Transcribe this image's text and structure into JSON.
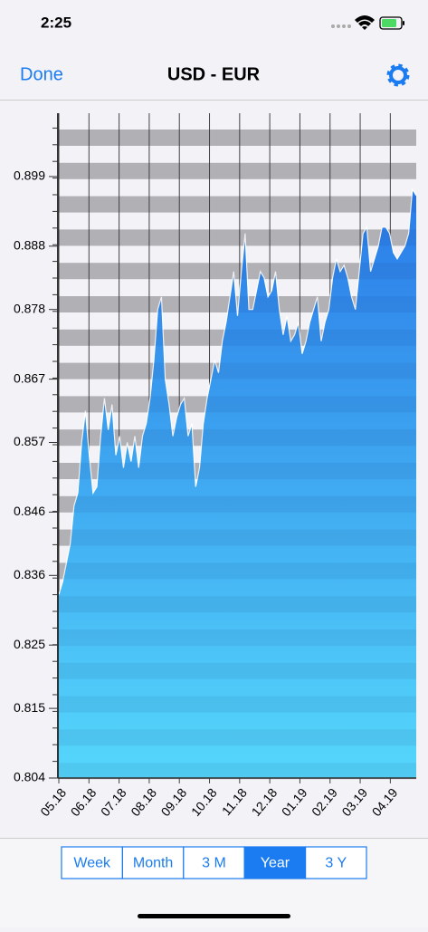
{
  "status_bar": {
    "time": "2:25"
  },
  "nav": {
    "back": "Done",
    "title": "USD - EUR"
  },
  "chart_data": {
    "type": "area",
    "color": "#2a7be8",
    "color_bottom": "#55d7fb",
    "values": [
      0.833,
      0.835,
      0.838,
      0.841,
      0.847,
      0.849,
      0.857,
      0.862,
      0.855,
      0.849,
      0.85,
      0.858,
      0.864,
      0.859,
      0.863,
      0.855,
      0.858,
      0.853,
      0.857,
      0.854,
      0.858,
      0.853,
      0.858,
      0.86,
      0.864,
      0.87,
      0.878,
      0.88,
      0.867,
      0.863,
      0.858,
      0.861,
      0.863,
      0.864,
      0.858,
      0.86,
      0.85,
      0.853,
      0.86,
      0.864,
      0.867,
      0.87,
      0.868,
      0.873,
      0.876,
      0.88,
      0.884,
      0.877,
      0.884,
      0.89,
      0.878,
      0.878,
      0.881,
      0.884,
      0.883,
      0.88,
      0.881,
      0.884,
      0.878,
      0.874,
      0.877,
      0.873,
      0.874,
      0.876,
      0.871,
      0.873,
      0.876,
      0.878,
      0.88,
      0.873,
      0.876,
      0.878,
      0.883,
      0.886,
      0.884,
      0.885,
      0.883,
      0.88,
      0.878,
      0.884,
      0.89,
      0.891,
      0.884,
      0.886,
      0.888,
      0.891,
      0.891,
      0.89,
      0.887,
      0.886,
      0.887,
      0.888,
      0.89,
      0.897,
      0.896
    ],
    "xlim": [
      0,
      11.86
    ],
    "xticks": [
      {
        "value": 0,
        "label": "05.18"
      },
      {
        "value": 1,
        "label": "06.18"
      },
      {
        "value": 2,
        "label": "07.18"
      },
      {
        "value": 3,
        "label": "08.18"
      },
      {
        "value": 4,
        "label": "09.18"
      },
      {
        "value": 5,
        "label": "10.18"
      },
      {
        "value": 6,
        "label": "11.18"
      },
      {
        "value": 7,
        "label": "12.18"
      },
      {
        "value": 8,
        "label": "01.19"
      },
      {
        "value": 9,
        "label": "02.19"
      },
      {
        "value": 10,
        "label": "03.19"
      },
      {
        "value": 11,
        "label": "04.19"
      }
    ],
    "ylim": [
      0.804,
      0.909
    ],
    "yticks": [
      0.804,
      0.815,
      0.825,
      0.836,
      0.846,
      0.857,
      0.867,
      0.878,
      0.888,
      0.899
    ],
    "grid": true
  },
  "segments": {
    "options": [
      "Week",
      "Month",
      "3 M",
      "Year",
      "3 Y"
    ],
    "selected": 3
  }
}
